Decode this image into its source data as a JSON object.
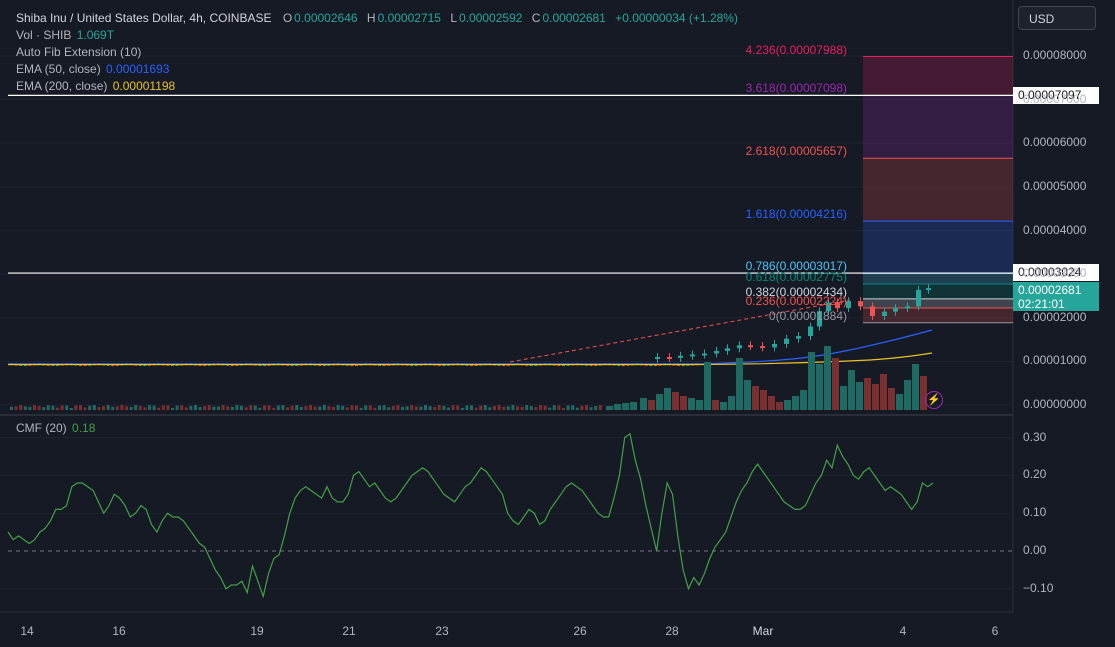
{
  "header": {
    "symbol": "Shiba Inu / United States Dollar, 4h, COINBASE",
    "o_label": "O",
    "o_value": "0.00002646",
    "h_label": "H",
    "h_value": "0.00002715",
    "l_label": "L",
    "l_value": "0.00002592",
    "c_label": "C",
    "c_value": "0.00002681",
    "change": "+0.00000034 (+1.28%)"
  },
  "indicators": {
    "vol_label": "Vol · SHIB",
    "vol_value": "1.069T",
    "fib_label": "Auto Fib Extension (10)",
    "ema50_label": "EMA (50, close)",
    "ema50_value": "0.00001693",
    "ema200_label": "EMA (200, close)",
    "ema200_value": "0.00001198",
    "cmf_label": "CMF (20)",
    "cmf_value": "0.18"
  },
  "currency_button": "USD",
  "colors": {
    "background": "#161a25",
    "up": "#26a69a",
    "down": "#ef5350",
    "ema50": "#2962ff",
    "ema200": "#e8c326",
    "cmf": "#43a047",
    "fib_4236": "#e91e63",
    "fib_3618": "#9c27b0",
    "fib_2618": "#ef5350",
    "fib_1618": "#2962ff",
    "fib_0786": "#4fc3f7",
    "fib_0618": "#00897b",
    "fib_0382": "#d1d4dc",
    "fib_0236": "#ef5350",
    "fib_0": "#9598a1"
  },
  "price_tags": {
    "upper_line": "0.00007097",
    "lower_line": "0.00003024",
    "last_price": "0.00002681",
    "countdown": "02:21:01"
  },
  "fib_levels": [
    {
      "label": "4.236(0.00007988)",
      "price": 7.988e-05,
      "color": "#e91e63"
    },
    {
      "label": "3.618(0.00007098)",
      "price": 7.098e-05,
      "color": "#9c27b0"
    },
    {
      "label": "2.618(0.00005657)",
      "price": 5.657e-05,
      "color": "#ef5350"
    },
    {
      "label": "1.618(0.00004216)",
      "price": 4.216e-05,
      "color": "#2962ff"
    },
    {
      "label": "0.786(0.00003017)",
      "price": 3.017e-05,
      "color": "#4fc3f7"
    },
    {
      "label": "0.618(0.00002775)",
      "price": 2.775e-05,
      "color": "#00897b"
    },
    {
      "label": "0.382(0.00002434)",
      "price": 2.434e-05,
      "color": "#d1d4dc"
    },
    {
      "label": "0.236(0.00002224)",
      "price": 2.224e-05,
      "color": "#ef5350"
    },
    {
      "label": "0(0.00001884)",
      "price": 1.884e-05,
      "color": "#9598a1"
    }
  ],
  "chart_data": [
    {
      "type": "candlestick",
      "title": "Shiba Inu / United States Dollar, 4h, COINBASE",
      "ylim": [
        0,
        8e-05
      ],
      "y_ticks": [
        "0.00008000",
        "0.00007000",
        "0.00006000",
        "0.00005000",
        "0.00004000",
        "0.00003000",
        "0.00002000",
        "0.00001000",
        "0.00000000"
      ],
      "x_ticks": [
        "14",
        "16",
        "19",
        "21",
        "23",
        "26",
        "28",
        "Mar",
        "4",
        "6"
      ],
      "horizontal_lines": [
        7.097e-05,
        3.024e-05
      ],
      "ohlc_last": {
        "open": 2.646e-05,
        "high": 2.715e-05,
        "low": 2.592e-05,
        "close": 2.681e-05
      },
      "grid": true,
      "legend": "top-left"
    },
    {
      "type": "line",
      "title": "CMF (20)",
      "ylim": [
        -0.15,
        0.33
      ],
      "y_ticks": [
        "0.30",
        "0.20",
        "0.10",
        "0.00",
        "−0.10"
      ],
      "series": [
        {
          "name": "CMF (20)",
          "values": [
            0.05,
            0.03,
            0.04,
            0.03,
            0.02,
            0.03,
            0.05,
            0.06,
            0.08,
            0.11,
            0.11,
            0.12,
            0.17,
            0.18,
            0.18,
            0.17,
            0.16,
            0.13,
            0.1,
            0.12,
            0.15,
            0.14,
            0.12,
            0.09,
            0.1,
            0.12,
            0.11,
            0.07,
            0.05,
            0.08,
            0.1,
            0.09,
            0.09,
            0.08,
            0.06,
            0.04,
            0.02,
            0.01,
            -0.02,
            -0.05,
            -0.07,
            -0.1,
            -0.09,
            -0.09,
            -0.08,
            -0.11,
            -0.04,
            -0.08,
            -0.12,
            -0.06,
            -0.02,
            -0.01,
            0.04,
            0.1,
            0.14,
            0.16,
            0.17,
            0.16,
            0.15,
            0.14,
            0.17,
            0.14,
            0.13,
            0.13,
            0.15,
            0.2,
            0.21,
            0.19,
            0.17,
            0.18,
            0.16,
            0.14,
            0.13,
            0.14,
            0.16,
            0.18,
            0.2,
            0.21,
            0.22,
            0.21,
            0.19,
            0.17,
            0.15,
            0.14,
            0.13,
            0.15,
            0.17,
            0.18,
            0.2,
            0.22,
            0.21,
            0.19,
            0.17,
            0.15,
            0.1,
            0.08,
            0.07,
            0.09,
            0.11,
            0.1,
            0.07,
            0.08,
            0.11,
            0.13,
            0.15,
            0.17,
            0.18,
            0.17,
            0.16,
            0.14,
            0.12,
            0.1,
            0.09,
            0.09,
            0.14,
            0.2,
            0.3,
            0.31,
            0.24,
            0.19,
            0.12,
            0.06,
            0.0,
            0.1,
            0.18,
            0.15,
            0.04,
            -0.05,
            -0.1,
            -0.07,
            -0.09,
            -0.06,
            -0.02,
            0.01,
            0.03,
            0.05,
            0.09,
            0.13,
            0.16,
            0.18,
            0.21,
            0.23,
            0.21,
            0.19,
            0.17,
            0.15,
            0.13,
            0.12,
            0.11,
            0.11,
            0.12,
            0.15,
            0.18,
            0.2,
            0.24,
            0.22,
            0.28,
            0.25,
            0.23,
            0.2,
            0.19,
            0.21,
            0.22,
            0.2,
            0.18,
            0.16,
            0.17,
            0.16,
            0.15,
            0.13,
            0.11,
            0.13,
            0.18,
            0.17,
            0.18
          ]
        }
      ],
      "legend": "top-left"
    }
  ]
}
